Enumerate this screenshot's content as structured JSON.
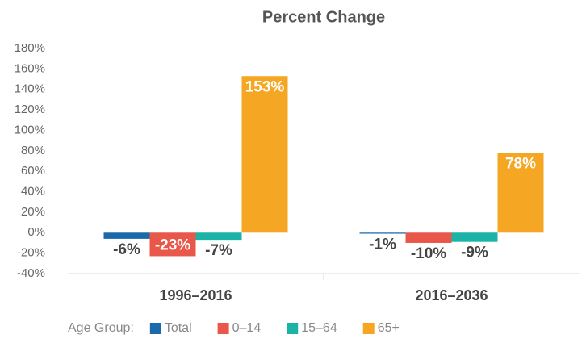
{
  "chart_data": {
    "type": "bar",
    "title": "Percent Change",
    "categories": [
      "1996–2016",
      "2016–2036"
    ],
    "legend_title": "Age Group:",
    "series": [
      {
        "name": "Total",
        "color": "#1a6aab",
        "values": [
          -6,
          -1
        ],
        "value_labels": [
          "-6%",
          "-1%"
        ]
      },
      {
        "name": "0–14",
        "color": "#e8574a",
        "values": [
          -23,
          -10
        ],
        "value_labels": [
          "-23%",
          "-10%"
        ]
      },
      {
        "name": "15–64",
        "color": "#1ab3a6",
        "values": [
          -7,
          -9
        ],
        "value_labels": [
          "-7%",
          "-9%"
        ]
      },
      {
        "name": "65+",
        "color": "#f5a623",
        "values": [
          153,
          78
        ],
        "value_labels": [
          "153%",
          "78%"
        ]
      }
    ],
    "ylim": [
      -40,
      180
    ],
    "yticks": [
      {
        "value": -40,
        "label": "-40%"
      },
      {
        "value": -20,
        "label": "-20%"
      },
      {
        "value": 0,
        "label": "0%"
      },
      {
        "value": 20,
        "label": "20%"
      },
      {
        "value": 40,
        "label": "40%"
      },
      {
        "value": 60,
        "label": "60%"
      },
      {
        "value": 80,
        "label": "80%"
      },
      {
        "value": 100,
        "label": "100%"
      },
      {
        "value": 120,
        "label": "120%"
      },
      {
        "value": 140,
        "label": "140%"
      },
      {
        "value": 160,
        "label": "160%"
      },
      {
        "value": 180,
        "label": "180%"
      }
    ],
    "grid": false,
    "legend": "bottom"
  }
}
